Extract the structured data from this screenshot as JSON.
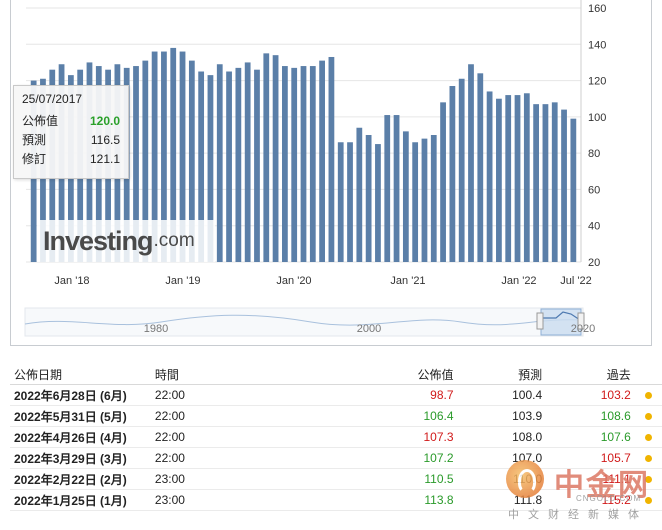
{
  "chart_data": {
    "type": "bar",
    "x_ticks": [
      "Jan '18",
      "Jan '19",
      "Jan '20",
      "Jan '21",
      "Jan '22",
      "Jul '22"
    ],
    "y_ticks": [
      20,
      40,
      60,
      80,
      100,
      120,
      140,
      160
    ],
    "ylim": [
      20,
      160
    ],
    "color": "#5b7fa8",
    "values": [
      120.0,
      121,
      126,
      129,
      123,
      126,
      130,
      128,
      126,
      129,
      127,
      128,
      131,
      136,
      136,
      138,
      136,
      131,
      125,
      123,
      129,
      125,
      127,
      130,
      126,
      135,
      134,
      128,
      127,
      128,
      128,
      131,
      133,
      86,
      86,
      94,
      90,
      85,
      101,
      101,
      92,
      86,
      88,
      90,
      108,
      117,
      121,
      129,
      124,
      114,
      110,
      112,
      112,
      113,
      107,
      107,
      108,
      104,
      99
    ]
  },
  "navigator": {
    "labels": [
      "1980",
      "2000",
      "2020"
    ]
  },
  "logo": {
    "brand": "Investing",
    "suffix": ".com"
  },
  "tooltip": {
    "date": "25/07/2017",
    "actual_label": "公佈值",
    "actual": "120.0",
    "forecast_label": "預測",
    "forecast": "116.5",
    "revised_label": "修訂",
    "revised": "121.1"
  },
  "table": {
    "headers": {
      "date": "公佈日期",
      "time": "時間",
      "actual": "公佈值",
      "forecast": "預測",
      "previous": "過去"
    },
    "rows": [
      {
        "date": "2022年6月28日 (6月)",
        "time": "22:00",
        "actual": "98.7",
        "forecast": "100.4",
        "previous": "103.2",
        "actual_dir": "down",
        "previous_dir": "down"
      },
      {
        "date": "2022年5月31日 (5月)",
        "time": "22:00",
        "actual": "106.4",
        "forecast": "103.9",
        "previous": "108.6",
        "actual_dir": "up",
        "previous_dir": "up"
      },
      {
        "date": "2022年4月26日 (4月)",
        "time": "22:00",
        "actual": "107.3",
        "forecast": "108.0",
        "previous": "107.6",
        "actual_dir": "down",
        "previous_dir": "up"
      },
      {
        "date": "2022年3月29日 (3月)",
        "time": "22:00",
        "actual": "107.2",
        "forecast": "107.0",
        "previous": "105.7",
        "actual_dir": "up",
        "previous_dir": "down"
      },
      {
        "date": "2022年2月22日 (2月)",
        "time": "23:00",
        "actual": "110.5",
        "forecast": "110.0",
        "previous": "111.1",
        "actual_dir": "up",
        "previous_dir": "down"
      },
      {
        "date": "2022年1月25日 (1月)",
        "time": "23:00",
        "actual": "113.8",
        "forecast": "111.8",
        "previous": "115.2",
        "actual_dir": "up",
        "previous_dir": "down"
      }
    ]
  },
  "watermark": {
    "name": "中金网",
    "url": "CNGOLD.COM",
    "slogan": "中文财经新媒体"
  }
}
